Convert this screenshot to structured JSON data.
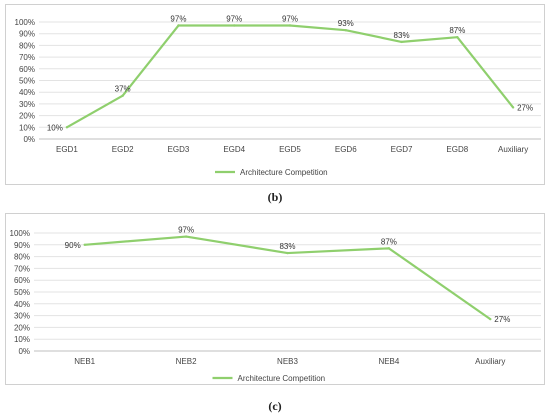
{
  "chart_data": [
    {
      "type": "line",
      "panel_label": "(b)",
      "categories": [
        "EGD1",
        "EGD2",
        "EGD3",
        "EGD4",
        "EGD5",
        "EGD6",
        "EGD7",
        "EGD8",
        "Auxiliary"
      ],
      "series": [
        {
          "name": "Architecture Competition",
          "values": [
            10,
            37,
            97,
            97,
            97,
            93,
            83,
            87,
            27
          ],
          "color": "#8fcf6d"
        }
      ],
      "data_labels": [
        "10%",
        "37%",
        "97%",
        "97%",
        "97%",
        "93%",
        "83%",
        "87%",
        "27%"
      ],
      "yticks": [
        "0%",
        "10%",
        "20%",
        "30%",
        "40%",
        "50%",
        "60%",
        "70%",
        "80%",
        "90%",
        "100%"
      ],
      "ylim": [
        0,
        100
      ],
      "title": "",
      "xlabel": "",
      "ylabel": "",
      "grid": true,
      "legend": "bottom"
    },
    {
      "type": "line",
      "panel_label": "(c)",
      "categories": [
        "NEB1",
        "NEB2",
        "NEB3",
        "NEB4",
        "Auxiliary"
      ],
      "series": [
        {
          "name": "Architecture Competition",
          "values": [
            90,
            97,
            83,
            87,
            27
          ],
          "color": "#8fcf6d"
        }
      ],
      "data_labels": [
        "90%",
        "97%",
        "83%",
        "87%",
        "27%"
      ],
      "yticks": [
        "0%",
        "10%",
        "20%",
        "30%",
        "40%",
        "50%",
        "60%",
        "70%",
        "80%",
        "90%",
        "100%"
      ],
      "ylim": [
        0,
        100
      ],
      "title": "",
      "xlabel": "",
      "ylabel": "",
      "grid": true,
      "legend": "bottom"
    }
  ]
}
